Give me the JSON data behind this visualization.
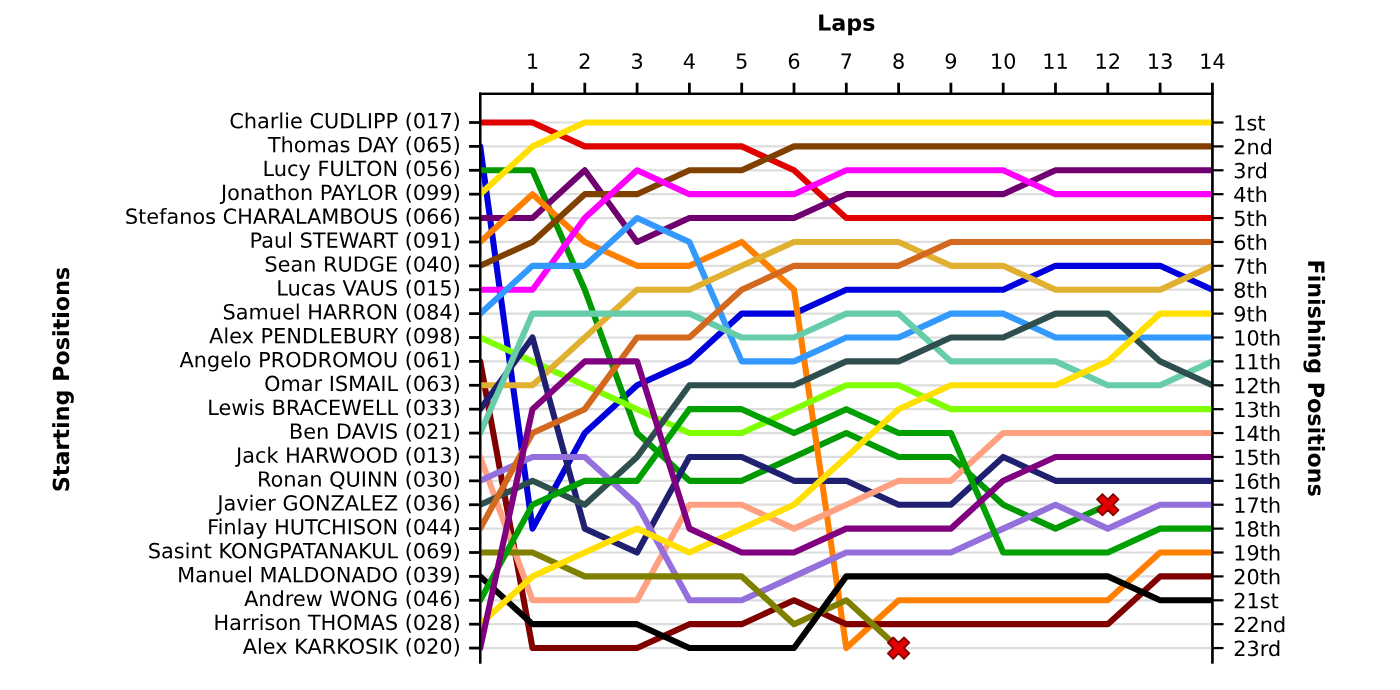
{
  "chart_data": {
    "type": "line",
    "xlabel": "Laps",
    "y2label": "Finishing Positions",
    "grid": true,
    "x": [
      0,
      1,
      2,
      3,
      4,
      5,
      6,
      7,
      8,
      9,
      10,
      11,
      12,
      13,
      14
    ],
    "xlim": [
      0,
      14
    ],
    "xticks": [
      1,
      2,
      3,
      4,
      5,
      6,
      7,
      8,
      9,
      10,
      11,
      12,
      13,
      14
    ],
    "annotations": [
      "Charlie CUDLIPP (017)",
      "Thomas DAY (065)",
      "Lucy FULTON (056)",
      "Jonathon PAYLOR (099)",
      "Stefanos CHARALAMBOUS (066)",
      "Paul STEWART (091)",
      "Sean RUDGE (040)",
      "Lucas VAUS (015)",
      "Samuel HARRON (084)",
      "Alex PENDLEBURY (098)",
      "Angelo PRODROMOU (061)",
      "Omar ISMAIL (063)",
      "Lewis BRACEWELL (033)",
      "Ben DAVIS (021)",
      "Jack HARWOOD (013)",
      "Ronan QUINN (030)",
      "Javier GONZALEZ (036)",
      "Finlay HUTCHISON (044)",
      "Sasint KONGPATANAKUL (069)",
      "Manuel MALDONADO (039)",
      "Andrew WONG (046)",
      "Harrison THOMAS (028)",
      "Alex KARKOSIK (020)",
      "Starting Positions"
    ],
    "y2lim": [
      23.6,
      -0.2
    ],
    "y2ticks": [
      {
        "value": 1,
        "label": "1st"
      },
      {
        "value": 2,
        "label": "2nd"
      },
      {
        "value": 3,
        "label": "3rd"
      },
      {
        "value": 4,
        "label": "4th"
      },
      {
        "value": 5,
        "label": "5th"
      },
      {
        "value": 6,
        "label": "6th"
      },
      {
        "value": 7,
        "label": "7th"
      },
      {
        "value": 8,
        "label": "8th"
      },
      {
        "value": 9,
        "label": "9th"
      },
      {
        "value": 10,
        "label": "10th"
      },
      {
        "value": 11,
        "label": "11th"
      },
      {
        "value": 12,
        "label": "12th"
      },
      {
        "value": 13,
        "label": "13th"
      },
      {
        "value": 14,
        "label": "14th"
      },
      {
        "value": 15,
        "label": "15th"
      },
      {
        "value": 16,
        "label": "16th"
      },
      {
        "value": 17,
        "label": "17th"
      },
      {
        "value": 18,
        "label": "18th"
      },
      {
        "value": 19,
        "label": "19th"
      },
      {
        "value": 20,
        "label": "20th"
      },
      {
        "value": 21,
        "label": "21st"
      },
      {
        "value": 22,
        "label": "22nd"
      },
      {
        "value": 23,
        "label": "23rd"
      }
    ],
    "series": [
      {
        "axis": "y2",
        "color": "#e00000",
        "values": [
          1,
          1,
          2,
          2,
          2,
          2,
          3,
          5,
          5,
          5,
          5,
          5,
          5,
          5,
          5
        ]
      },
      {
        "axis": "y2",
        "color": "#0000dd",
        "values": [
          2,
          18,
          14,
          12,
          11,
          9,
          9,
          8,
          8,
          8,
          8,
          7,
          7,
          7,
          8
        ]
      },
      {
        "axis": "y2",
        "color": "#009a00",
        "values": [
          3,
          3,
          8,
          14,
          16,
          16,
          15,
          14,
          15,
          15,
          17,
          18,
          17,
          null,
          null
        ]
      },
      {
        "axis": "y2",
        "color": "#ffe000",
        "values": [
          4,
          2,
          1,
          1,
          1,
          1,
          1,
          1,
          1,
          1,
          1,
          1,
          1,
          1,
          1
        ]
      },
      {
        "axis": "y2",
        "color": "#700070",
        "values": [
          5,
          5,
          3,
          6,
          5,
          5,
          5,
          4,
          4,
          4,
          4,
          3,
          3,
          3,
          3
        ]
      },
      {
        "axis": "y2",
        "color": "#ff8000",
        "values": [
          6,
          4,
          6,
          7,
          7,
          6,
          8,
          23,
          21,
          21,
          21,
          21,
          21,
          19,
          19
        ]
      },
      {
        "axis": "y2",
        "color": "#804000",
        "values": [
          7,
          6,
          4,
          4,
          3,
          3,
          2,
          2,
          2,
          2,
          2,
          2,
          2,
          2,
          2
        ]
      },
      {
        "axis": "y2",
        "color": "#ff00ff",
        "values": [
          8,
          8,
          5,
          3,
          4,
          4,
          4,
          3,
          3,
          3,
          3,
          4,
          4,
          4,
          4
        ]
      },
      {
        "axis": "y2",
        "color": "#3399ff",
        "values": [
          9,
          7,
          7,
          5,
          6,
          11,
          11,
          10,
          10,
          9,
          9,
          10,
          10,
          10,
          10
        ]
      },
      {
        "axis": "y2",
        "color": "#80ff00",
        "values": [
          10,
          11,
          12,
          13,
          14,
          14,
          13,
          12,
          12,
          13,
          13,
          13,
          13,
          13,
          13
        ]
      },
      {
        "axis": "y2",
        "color": "#800000",
        "values": [
          11,
          23,
          23,
          23,
          22,
          22,
          21,
          22,
          22,
          22,
          22,
          22,
          22,
          20,
          20
        ]
      },
      {
        "axis": "y2",
        "color": "#e0b030",
        "values": [
          12,
          12,
          10,
          8,
          8,
          7,
          6,
          6,
          6,
          7,
          7,
          8,
          8,
          8,
          7
        ]
      },
      {
        "axis": "y2",
        "color": "#202070",
        "values": [
          13,
          10,
          18,
          19,
          15,
          15,
          16,
          16,
          17,
          17,
          15,
          16,
          16,
          16,
          16
        ]
      },
      {
        "axis": "y2",
        "color": "#66ccaa",
        "values": [
          14,
          9,
          9,
          9,
          9,
          10,
          10,
          9,
          9,
          11,
          11,
          11,
          12,
          12,
          11
        ]
      },
      {
        "axis": "y2",
        "color": "#ffa080",
        "values": [
          15,
          21,
          21,
          21,
          17,
          17,
          18,
          17,
          16,
          16,
          14,
          14,
          14,
          14,
          14
        ]
      },
      {
        "axis": "y2",
        "color": "#9370db",
        "values": [
          16,
          15,
          15,
          17,
          21,
          21,
          20,
          19,
          19,
          19,
          18,
          17,
          18,
          17,
          17
        ]
      },
      {
        "axis": "y2",
        "color": "#2f4f4f",
        "values": [
          17,
          16,
          17,
          15,
          12,
          12,
          12,
          11,
          11,
          10,
          10,
          9,
          9,
          11,
          12
        ]
      },
      {
        "axis": "y2",
        "color": "#d2691e",
        "values": [
          18,
          14,
          13,
          10,
          10,
          8,
          7,
          7,
          7,
          6,
          6,
          6,
          6,
          6,
          6
        ]
      },
      {
        "axis": "y2",
        "color": "#808000",
        "values": [
          19,
          19,
          20,
          20,
          20,
          20,
          22,
          21,
          23,
          null,
          null,
          null,
          null,
          null,
          null
        ]
      },
      {
        "axis": "y2",
        "color": "#000000",
        "values": [
          20,
          22,
          22,
          22,
          23,
          23,
          23,
          20,
          20,
          20,
          20,
          20,
          20,
          21,
          21
        ]
      },
      {
        "axis": "y2",
        "color": "#00a000",
        "values": [
          21,
          17,
          16,
          16,
          13,
          13,
          14,
          13,
          14,
          14,
          19,
          19,
          19,
          18,
          18
        ]
      },
      {
        "axis": "y2",
        "color": "#ffe000",
        "values": [
          22,
          20,
          19,
          18,
          19,
          18,
          17,
          15,
          13,
          12,
          12,
          12,
          11,
          9,
          9
        ]
      },
      {
        "axis": "y2",
        "color": "#800080",
        "values": [
          23,
          13,
          11,
          11,
          18,
          19,
          19,
          18,
          18,
          18,
          16,
          15,
          15,
          15,
          15
        ]
      },
      {
        "axis": "y2",
        "type": "scatter",
        "marker": "cross",
        "color": "#e00000",
        "x": [
          8,
          12
        ],
        "values": [
          23,
          17
        ]
      }
    ]
  }
}
